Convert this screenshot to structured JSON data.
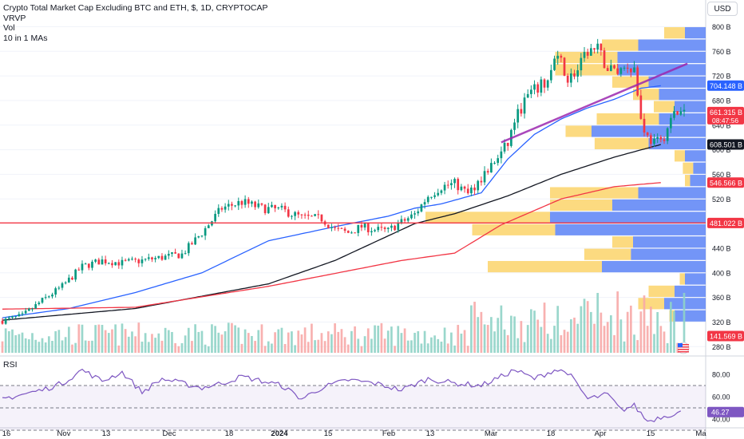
{
  "legend": {
    "title": "Crypto Total Market Cap Excluding BTC and ETH, $, 1D, CRYPTOCAP",
    "line2": "VRVP",
    "line3": "Vol",
    "line4": "10 in 1 MAs"
  },
  "currency_button": "USD",
  "rsi_label": "RSI",
  "chart_data": [
    {
      "type": "candlestick",
      "title": "Crypto Total Market Cap Excluding BTC and ETH, $, 1D, CRYPTOCAP",
      "y_unit": "B",
      "y_range": [
        270,
        820
      ],
      "y_ticks": [
        280,
        320,
        360,
        400,
        440,
        520,
        560,
        600,
        640,
        680,
        720,
        760,
        800
      ],
      "y_tick_labels": [
        "280 B",
        "320 B",
        "360 B",
        "400 B",
        "440 B",
        "520 B",
        "560 B",
        "600 B",
        "640 B",
        "680 B",
        "720 B",
        "760 B",
        "800 B"
      ],
      "x_ticks": [
        "16",
        "Nov",
        "13",
        "Dec",
        "18",
        "2024",
        "15",
        "Feb",
        "13",
        "Mar",
        "18",
        "Apr",
        "15",
        "Ma"
      ],
      "price_badges": [
        {
          "label": "704.148 B",
          "value": 704.148,
          "color": "#2962ff"
        },
        {
          "label": "661.315 B",
          "value": 661.315,
          "color": "#f23645",
          "sub": "08:47:56"
        },
        {
          "label": "608.501 B",
          "value": 608.501,
          "color": "#131722"
        },
        {
          "label": "546.566 B",
          "value": 546.566,
          "color": "#f23645"
        },
        {
          "label": "481.022 B",
          "value": 481.022,
          "color": "#f23645"
        },
        {
          "label": "141.569 B",
          "value": 141.569,
          "color": "#f23645"
        }
      ],
      "horizontal_line": 481.022,
      "anchors": [
        [
          0,
          322
        ],
        [
          6,
          330
        ],
        [
          12,
          355
        ],
        [
          18,
          378
        ],
        [
          24,
          410
        ],
        [
          30,
          420
        ],
        [
          36,
          416
        ],
        [
          42,
          420
        ],
        [
          48,
          425
        ],
        [
          54,
          430
        ],
        [
          60,
          465
        ],
        [
          66,
          505
        ],
        [
          72,
          515
        ],
        [
          78,
          505
        ],
        [
          84,
          502
        ],
        [
          90,
          490
        ],
        [
          96,
          488
        ],
        [
          100,
          470
        ],
        [
          104,
          465
        ],
        [
          108,
          475
        ],
        [
          112,
          470
        ],
        [
          116,
          468
        ],
        [
          118,
          476
        ],
        [
          120,
          482
        ],
        [
          124,
          495
        ],
        [
          128,
          525
        ],
        [
          132,
          540
        ],
        [
          136,
          545
        ],
        [
          140,
          528
        ],
        [
          144,
          555
        ],
        [
          148,
          580
        ],
        [
          152,
          610
        ],
        [
          154,
          648
        ],
        [
          158,
          688
        ],
        [
          161,
          700
        ],
        [
          164,
          712
        ],
        [
          166,
          745
        ],
        [
          168,
          742
        ],
        [
          170,
          715
        ],
        [
          173,
          728
        ],
        [
          176,
          760
        ],
        [
          179,
          762
        ],
        [
          182,
          732
        ],
        [
          185,
          728
        ],
        [
          188,
          738
        ],
        [
          190,
          732
        ],
        [
          192,
          650
        ],
        [
          194,
          620
        ],
        [
          196,
          612
        ],
        [
          198,
          612
        ],
        [
          200,
          635
        ],
        [
          202,
          658
        ],
        [
          204,
          661
        ]
      ],
      "ma_lines": [
        {
          "color": "#2962ff",
          "points": [
            [
              0,
              327
            ],
            [
              20,
              342
            ],
            [
              40,
              368
            ],
            [
              60,
              400
            ],
            [
              80,
              452
            ],
            [
              100,
              475
            ],
            [
              116,
              492
            ],
            [
              124,
              505
            ],
            [
              132,
              512
            ],
            [
              144,
              530
            ],
            [
              152,
              585
            ],
            [
              160,
              625
            ],
            [
              168,
              650
            ],
            [
              176,
              668
            ],
            [
              184,
              682
            ],
            [
              192,
              700
            ],
            [
              198,
              704
            ]
          ]
        },
        {
          "color": "#131722",
          "points": [
            [
              0,
              323
            ],
            [
              40,
              342
            ],
            [
              60,
              362
            ],
            [
              80,
              382
            ],
            [
              100,
              420
            ],
            [
              124,
              480
            ],
            [
              136,
              496
            ],
            [
              152,
              525
            ],
            [
              168,
              560
            ],
            [
              184,
              588
            ],
            [
              198,
              608.5
            ]
          ]
        },
        {
          "color": "#f23645",
          "points": [
            [
              0,
              341
            ],
            [
              40,
              344
            ],
            [
              80,
              378
            ],
            [
              120,
              420
            ],
            [
              136,
              432
            ],
            [
              150,
              478
            ],
            [
              168,
              520
            ],
            [
              184,
              540
            ],
            [
              198,
              546.6
            ]
          ]
        }
      ],
      "trendline": {
        "color": "#9c27b0",
        "from": [
          150,
          612
        ],
        "to": [
          206,
          740
        ]
      },
      "volume_profile": [
        {
          "price": 790,
          "buy": 20,
          "sell": 20
        },
        {
          "price": 770,
          "buy": 35,
          "sell": 65
        },
        {
          "price": 750,
          "buy": 60,
          "sell": 85
        },
        {
          "price": 730,
          "buy": 60,
          "sell": 85
        },
        {
          "price": 710,
          "buy": 35,
          "sell": 55
        },
        {
          "price": 690,
          "buy": 25,
          "sell": 45
        },
        {
          "price": 670,
          "buy": 20,
          "sell": 30
        },
        {
          "price": 650,
          "buy": 60,
          "sell": 45
        },
        {
          "price": 630,
          "buy": 25,
          "sell": 110
        },
        {
          "price": 610,
          "buy": 52,
          "sell": 55
        },
        {
          "price": 590,
          "buy": 10,
          "sell": 20
        },
        {
          "price": 570,
          "buy": 10,
          "sell": 12
        },
        {
          "price": 550,
          "buy": 5,
          "sell": 15
        },
        {
          "price": 530,
          "buy": 85,
          "sell": 65
        },
        {
          "price": 510,
          "buy": 60,
          "sell": 90
        },
        {
          "price": 490,
          "buy": 120,
          "sell": 150
        },
        {
          "price": 470,
          "buy": 80,
          "sell": 145
        },
        {
          "price": 450,
          "buy": 20,
          "sell": 70
        },
        {
          "price": 430,
          "buy": 45,
          "sell": 72
        },
        {
          "price": 410,
          "buy": 110,
          "sell": 100
        },
        {
          "price": 390,
          "buy": 5,
          "sell": 20
        },
        {
          "price": 370,
          "buy": 25,
          "sell": 30
        },
        {
          "price": 350,
          "buy": 25,
          "sell": 40
        },
        {
          "price": 330,
          "buy": 5,
          "sell": 30
        }
      ],
      "bar_count": 206
    },
    {
      "type": "line",
      "title": "RSI",
      "y_range": [
        35,
        90
      ],
      "y_ticks": [
        40,
        60,
        80
      ],
      "y_tick_labels": [
        "40.00",
        "60.00",
        "80.00"
      ],
      "bands": [
        30,
        50,
        70
      ],
      "current_label": "46.27",
      "current_value": 46.27,
      "anchors": [
        [
          0,
          58
        ],
        [
          6,
          62
        ],
        [
          12,
          66
        ],
        [
          18,
          72
        ],
        [
          24,
          84
        ],
        [
          30,
          74
        ],
        [
          36,
          82
        ],
        [
          42,
          64
        ],
        [
          48,
          76
        ],
        [
          54,
          72
        ],
        [
          60,
          68
        ],
        [
          66,
          72
        ],
        [
          72,
          78
        ],
        [
          78,
          74
        ],
        [
          84,
          70
        ],
        [
          90,
          58
        ],
        [
          96,
          68
        ],
        [
          104,
          75
        ],
        [
          112,
          72
        ],
        [
          120,
          66
        ],
        [
          128,
          76
        ],
        [
          136,
          72
        ],
        [
          144,
          70
        ],
        [
          150,
          78
        ],
        [
          154,
          84
        ],
        [
          160,
          76
        ],
        [
          166,
          84
        ],
        [
          170,
          82
        ],
        [
          176,
          58
        ],
        [
          182,
          62
        ],
        [
          186,
          48
        ],
        [
          190,
          52
        ],
        [
          194,
          38
        ],
        [
          198,
          42
        ],
        [
          204,
          46.27
        ]
      ]
    }
  ]
}
